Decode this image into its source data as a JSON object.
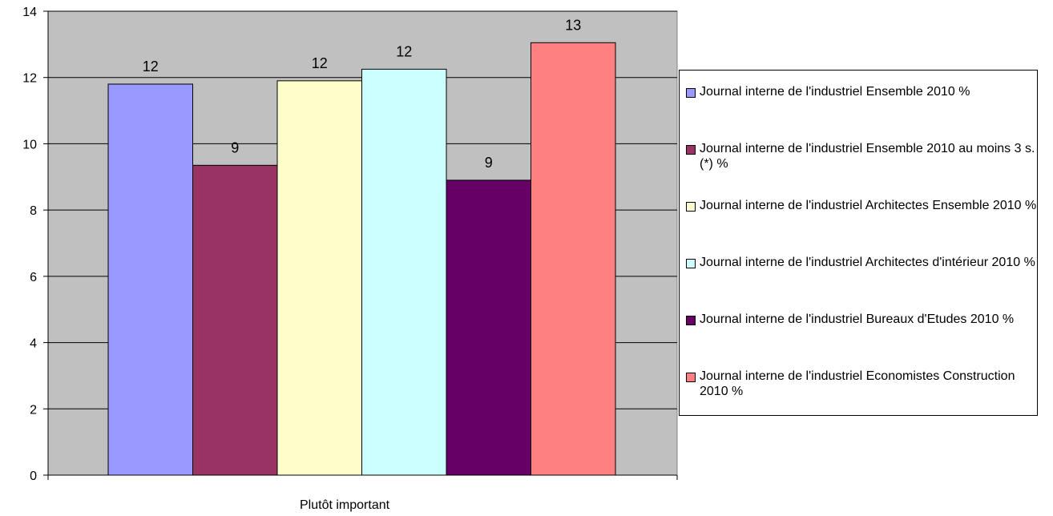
{
  "chart_data": {
    "type": "bar",
    "categories": [
      "Plutôt important"
    ],
    "series": [
      {
        "name": "Journal interne de l'industriel Ensemble 2010 %",
        "values": [
          11.8
        ],
        "label": "12",
        "color": "#9999FF"
      },
      {
        "name": "Journal interne de l'industriel Ensemble 2010 au moins 3 s.(*) %",
        "values": [
          9.35
        ],
        "label": "9",
        "color": "#993366"
      },
      {
        "name": "Journal interne de l'industriel Architectes Ensemble 2010 %",
        "values": [
          11.9
        ],
        "label": "12",
        "color": "#FFFFCC"
      },
      {
        "name": "Journal interne de l'industriel Architectes d'intérieur 2010 %",
        "values": [
          12.25
        ],
        "label": "12",
        "color": "#CCFFFF"
      },
      {
        "name": "Journal interne de l'industriel Bureaux d'Etudes 2010 %",
        "values": [
          8.9
        ],
        "label": "9",
        "color": "#660066"
      },
      {
        "name": "Journal interne de l'industriel Economistes Construction 2010 %",
        "values": [
          13.05
        ],
        "label": "13",
        "color": "#FF8080"
      }
    ],
    "ylim": [
      0,
      14
    ],
    "yticks": [
      "0",
      "2",
      "4",
      "6",
      "8",
      "10",
      "12",
      "14"
    ],
    "grid": true,
    "plot_background": "#C0C0C0",
    "legend_position": "right",
    "title": "",
    "xlabel": "",
    "ylabel": ""
  }
}
